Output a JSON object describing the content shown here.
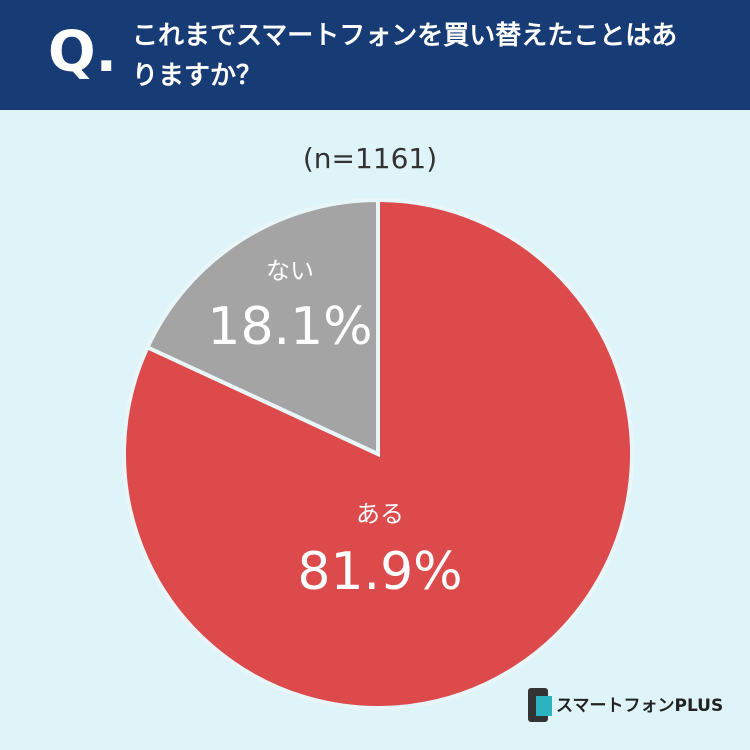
{
  "header": {
    "mark": "Q.",
    "title": "これまでスマートフォンを買い替えたことはありますか？"
  },
  "chart_data": {
    "type": "pie",
    "subtitle": "(n=1161)",
    "categories": [
      "ある",
      "ない"
    ],
    "values": [
      81.9,
      18.1
    ],
    "value_labels": [
      "81.9%",
      "18.1%"
    ],
    "colors": [
      "#dc4a4b",
      "#a4a4a4"
    ]
  },
  "footer": {
    "logo": "スマートフォンPLUS"
  }
}
